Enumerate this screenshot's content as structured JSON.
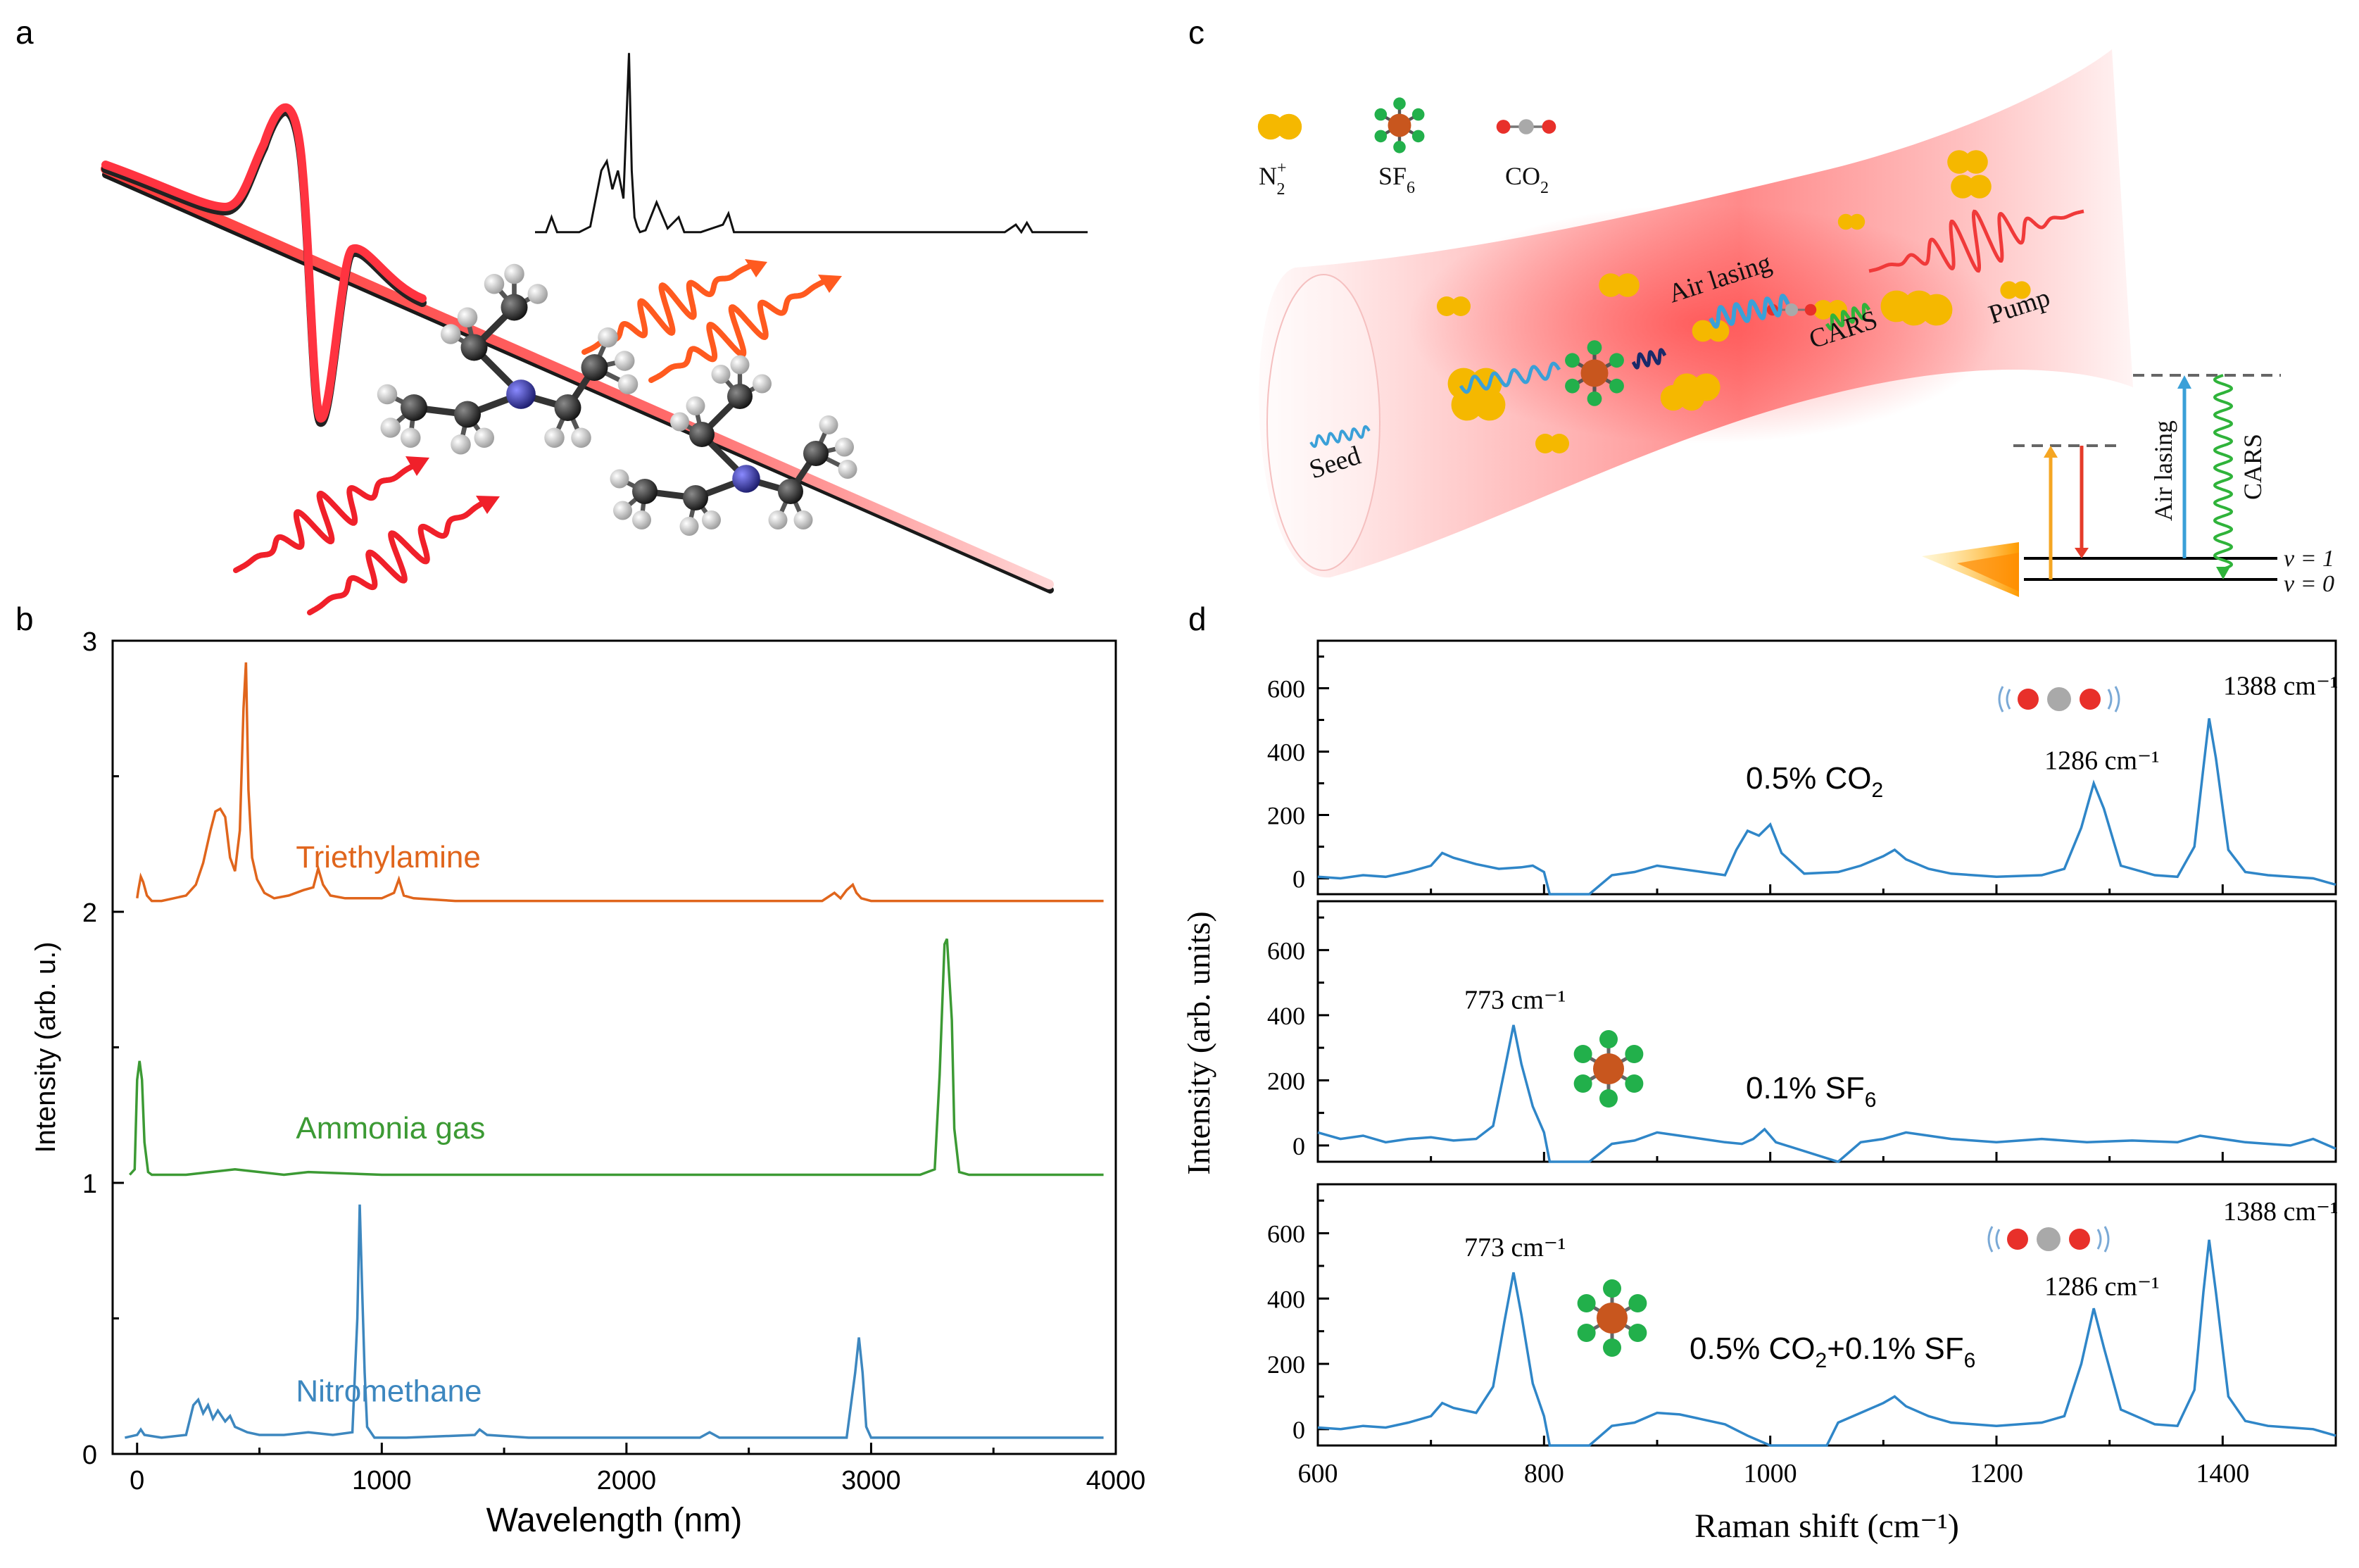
{
  "panel_labels": {
    "a": "a",
    "b": "b",
    "c": "c",
    "d": "d"
  },
  "colors": {
    "orange": "#e0651c",
    "green": "#3c9a34",
    "blue": "#3d87bf",
    "d_line": "#2f86c8",
    "axis": "#000000",
    "beam_red": "#ff3b3b",
    "pulse_red": "#f0202a",
    "wave_orange": "#ff5a1f",
    "n2": "#f5b800",
    "sf6_center": "#c8561e",
    "sf6_ligand": "#22b04b",
    "co2_o": "#e8302a",
    "co2_c": "#a9a9a9",
    "seed": "#3aa0d8",
    "cars": "#2fb33a",
    "level_orange": "#f5a623",
    "level_red": "#e53b2a"
  },
  "panel_c": {
    "legend": [
      {
        "symbol": "n2-molecule",
        "label_main": "N",
        "label_sub": "2",
        "label_sup": "+"
      },
      {
        "symbol": "sf6-molecule",
        "label_main": "SF",
        "label_sub": "6",
        "label_sup": ""
      },
      {
        "symbol": "co2-molecule",
        "label_main": "CO",
        "label_sub": "2",
        "label_sup": ""
      }
    ],
    "labels": {
      "air_lasing": "Air lasing",
      "cars": "CARS",
      "pump": "Pump",
      "seed": "Seed"
    },
    "level_diagram": {
      "air_lasing": "Air lasing",
      "cars": "CARS",
      "v1": "ν = 1",
      "v0": "ν = 0"
    }
  },
  "chart_data": [
    {
      "id": "panel-b",
      "type": "line",
      "xlabel": "Wavelength (nm)",
      "ylabel": "Intensity (arb. u.)",
      "xlim": [
        -100,
        4000
      ],
      "ylim": [
        0,
        3
      ],
      "xticks": [
        0,
        1000,
        2000,
        3000,
        4000
      ],
      "yticks": [
        0,
        1,
        2,
        3
      ],
      "minor_xticks": [
        500,
        1500,
        2500,
        3500
      ],
      "minor_yticks": [
        0.5,
        1.5,
        2.5
      ],
      "series": [
        {
          "name": "Triethylamine",
          "color": "#e0651c",
          "label_pos": [
            1800,
            2.2
          ],
          "x": [
            0,
            5,
            15,
            25,
            40,
            60,
            100,
            150,
            200,
            240,
            270,
            300,
            320,
            340,
            360,
            380,
            400,
            420,
            435,
            445,
            455,
            470,
            490,
            520,
            560,
            620,
            680,
            720,
            740,
            760,
            790,
            850,
            1000,
            1050,
            1070,
            1090,
            1130,
            1300,
            1600,
            2000,
            2400,
            2800,
            2850,
            2875,
            2900,
            2925,
            2940,
            2960,
            3000,
            3300,
            3600,
            3950
          ],
          "y": [
            2.05,
            2.08,
            2.13,
            2.11,
            2.06,
            2.04,
            2.04,
            2.05,
            2.06,
            2.1,
            2.18,
            2.3,
            2.37,
            2.38,
            2.35,
            2.2,
            2.15,
            2.3,
            2.75,
            2.92,
            2.45,
            2.2,
            2.12,
            2.07,
            2.05,
            2.06,
            2.08,
            2.09,
            2.16,
            2.1,
            2.06,
            2.05,
            2.05,
            2.07,
            2.12,
            2.06,
            2.05,
            2.04,
            2.04,
            2.04,
            2.04,
            2.04,
            2.07,
            2.05,
            2.08,
            2.1,
            2.07,
            2.05,
            2.04,
            2.04,
            2.04,
            2.04
          ]
        },
        {
          "name": "Ammonia gas",
          "color": "#3c9a34",
          "label_pos": [
            1800,
            1.2
          ],
          "x": [
            -30,
            -10,
            0,
            10,
            20,
            30,
            45,
            60,
            100,
            200,
            300,
            400,
            500,
            600,
            700,
            1000,
            1500,
            2000,
            2500,
            3000,
            3200,
            3260,
            3280,
            3300,
            3310,
            3320,
            3330,
            3340,
            3360,
            3400,
            3700,
            3950
          ],
          "y": [
            1.03,
            1.05,
            1.38,
            1.45,
            1.38,
            1.15,
            1.04,
            1.03,
            1.03,
            1.03,
            1.04,
            1.05,
            1.04,
            1.03,
            1.04,
            1.03,
            1.03,
            1.03,
            1.03,
            1.03,
            1.03,
            1.05,
            1.4,
            1.88,
            1.9,
            1.75,
            1.6,
            1.2,
            1.04,
            1.03,
            1.03,
            1.03
          ]
        },
        {
          "name": "Nitromethane",
          "color": "#3d87bf",
          "label_pos": [
            1800,
            0.23
          ],
          "x": [
            -50,
            0,
            15,
            30,
            100,
            200,
            230,
            250,
            270,
            290,
            310,
            330,
            360,
            380,
            400,
            450,
            500,
            600,
            700,
            800,
            880,
            900,
            910,
            920,
            930,
            940,
            970,
            1100,
            1380,
            1400,
            1430,
            1600,
            2000,
            2300,
            2340,
            2380,
            2600,
            2900,
            2935,
            2950,
            2965,
            2980,
            3000,
            3300,
            3600,
            3950
          ],
          "y": [
            0.06,
            0.07,
            0.09,
            0.07,
            0.06,
            0.07,
            0.18,
            0.2,
            0.15,
            0.18,
            0.13,
            0.16,
            0.12,
            0.14,
            0.1,
            0.08,
            0.07,
            0.07,
            0.08,
            0.07,
            0.08,
            0.5,
            0.92,
            0.6,
            0.3,
            0.1,
            0.06,
            0.06,
            0.07,
            0.09,
            0.07,
            0.06,
            0.06,
            0.06,
            0.08,
            0.06,
            0.06,
            0.06,
            0.3,
            0.43,
            0.3,
            0.1,
            0.06,
            0.06,
            0.06,
            0.06
          ]
        }
      ]
    },
    {
      "id": "panel-d",
      "type": "line",
      "xlabel": "Raman shift (cm⁻¹)",
      "ylabel": "Intensity (arb. units)",
      "xlim": [
        600,
        1500
      ],
      "xticks": [
        600,
        800,
        1000,
        1200,
        1400
      ],
      "subplots": [
        {
          "name": "0.5% CO2",
          "label_main": "0.5% CO",
          "label_sub": "2",
          "ylim": [
            -50,
            750
          ],
          "yticks": [
            0,
            200,
            400,
            600
          ],
          "annotations": [
            {
              "text": "1388 cm⁻¹",
              "x": 1388,
              "y": 580
            },
            {
              "text": "1286 cm⁻¹",
              "x": 1286,
              "y": 345
            }
          ],
          "x": [
            600,
            620,
            640,
            660,
            680,
            700,
            710,
            720,
            740,
            760,
            780,
            790,
            800,
            805,
            840,
            860,
            880,
            900,
            920,
            940,
            960,
            970,
            980,
            990,
            1000,
            1010,
            1030,
            1060,
            1080,
            1100,
            1110,
            1120,
            1140,
            1160,
            1200,
            1240,
            1260,
            1275,
            1286,
            1295,
            1310,
            1340,
            1360,
            1375,
            1383,
            1388,
            1394,
            1405,
            1420,
            1440,
            1460,
            1480,
            1500
          ],
          "y": [
            5,
            0,
            10,
            5,
            20,
            40,
            80,
            65,
            45,
            30,
            35,
            40,
            20,
            -50,
            -50,
            10,
            20,
            40,
            30,
            20,
            10,
            90,
            150,
            135,
            170,
            80,
            15,
            20,
            40,
            70,
            90,
            60,
            30,
            15,
            5,
            10,
            30,
            160,
            300,
            220,
            40,
            10,
            5,
            100,
            350,
            505,
            380,
            90,
            20,
            10,
            5,
            0,
            -20
          ]
        },
        {
          "name": "0.1% SF6",
          "label_main": "0.1% SF",
          "label_sub": "6",
          "ylim": [
            -50,
            750
          ],
          "yticks": [
            0,
            200,
            400,
            600
          ],
          "annotations": [
            {
              "text": "773 cm⁻¹",
              "x": 773,
              "y": 420
            }
          ],
          "x": [
            600,
            620,
            640,
            660,
            680,
            700,
            720,
            740,
            755,
            765,
            773,
            780,
            790,
            800,
            805,
            840,
            860,
            880,
            900,
            920,
            940,
            960,
            975,
            985,
            995,
            1005,
            1060,
            1080,
            1100,
            1120,
            1140,
            1160,
            1200,
            1240,
            1280,
            1320,
            1360,
            1380,
            1400,
            1420,
            1440,
            1460,
            1480,
            1500
          ],
          "y": [
            40,
            20,
            30,
            10,
            20,
            25,
            15,
            20,
            60,
            230,
            370,
            250,
            120,
            40,
            -50,
            -50,
            5,
            15,
            40,
            30,
            20,
            10,
            5,
            20,
            50,
            10,
            -50,
            10,
            20,
            40,
            30,
            20,
            10,
            20,
            10,
            15,
            10,
            30,
            20,
            10,
            5,
            0,
            20,
            -10
          ]
        },
        {
          "name": "0.5% CO2+0.1% SF6",
          "label_main": "0.5% CO",
          "label_sub": "2",
          "label_tail": "+0.1% SF",
          "label_sub2": "6",
          "ylim": [
            -50,
            750
          ],
          "yticks": [
            0,
            200,
            400,
            600
          ],
          "annotations": [
            {
              "text": "773 cm⁻¹",
              "x": 773,
              "y": 530
            },
            {
              "text": "1388 cm⁻¹",
              "x": 1388,
              "y": 640
            },
            {
              "text": "1286 cm⁻¹",
              "x": 1286,
              "y": 410
            }
          ],
          "x": [
            600,
            620,
            640,
            660,
            680,
            700,
            710,
            720,
            740,
            755,
            765,
            773,
            780,
            790,
            800,
            805,
            840,
            860,
            880,
            900,
            920,
            940,
            960,
            980,
            1000,
            1050,
            1060,
            1080,
            1100,
            1110,
            1120,
            1140,
            1160,
            1200,
            1240,
            1260,
            1275,
            1286,
            1295,
            1310,
            1340,
            1360,
            1375,
            1383,
            1388,
            1394,
            1405,
            1420,
            1440,
            1460,
            1480,
            1500
          ],
          "y": [
            5,
            0,
            10,
            5,
            20,
            40,
            80,
            65,
            50,
            130,
            330,
            480,
            350,
            140,
            40,
            -50,
            -50,
            10,
            20,
            50,
            45,
            30,
            15,
            -20,
            -50,
            -50,
            20,
            50,
            80,
            100,
            70,
            40,
            20,
            10,
            20,
            40,
            200,
            370,
            250,
            60,
            15,
            10,
            120,
            420,
            580,
            420,
            100,
            25,
            10,
            5,
            0,
            -20
          ]
        }
      ]
    }
  ],
  "panel_a": {
    "inset_spectrum": {
      "x": [
        0,
        0.02,
        0.03,
        0.04,
        0.05,
        0.08,
        0.1,
        0.12,
        0.13,
        0.14,
        0.15,
        0.16,
        0.17,
        0.175,
        0.18,
        0.185,
        0.19,
        0.2,
        0.22,
        0.24,
        0.26,
        0.27,
        0.28,
        0.3,
        0.34,
        0.35,
        0.36,
        0.4,
        0.6,
        0.85,
        0.87,
        0.88,
        0.89,
        0.9,
        1.0
      ],
      "y": [
        0.02,
        0.02,
        0.1,
        0.02,
        0.02,
        0.02,
        0.05,
        0.35,
        0.4,
        0.25,
        0.35,
        0.2,
        0.98,
        0.35,
        0.1,
        0.05,
        0.02,
        0.03,
        0.18,
        0.04,
        0.1,
        0.02,
        0.02,
        0.02,
        0.06,
        0.12,
        0.02,
        0.02,
        0.02,
        0.02,
        0.06,
        0.02,
        0.07,
        0.02,
        0.02
      ]
    }
  }
}
